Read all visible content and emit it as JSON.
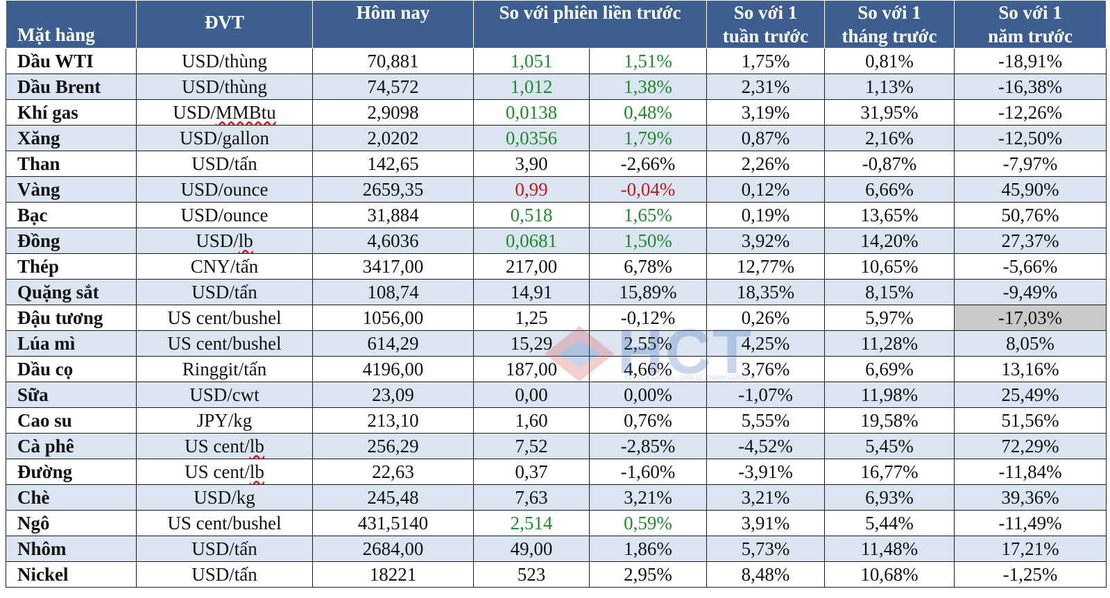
{
  "header": {
    "item": "Mặt hàng",
    "unit": "ĐVT",
    "today": "Hôm nay",
    "prev_session": "So với phiên liền trước",
    "week_l1": "So với 1",
    "week_l2": "tuần trước",
    "month_l1": "So với 1",
    "month_l2": "tháng trước",
    "year_l1": "So với 1",
    "year_l2": "năm trước"
  },
  "colors": {
    "header_bg": "#3d5f8f",
    "shade": "#dbe5f1",
    "positive": "#1e8a2a",
    "negative": "#c0161c",
    "highlight": "#c9c9c9"
  },
  "rows": [
    {
      "item": "Dầu WTI",
      "unit": "USD/thùng",
      "today": "70,881",
      "chg": "1,051",
      "pct": "1,51%",
      "w": "1,75%",
      "m": "0,81%",
      "y": "-18,91%"
    },
    {
      "item": "Dầu Brent",
      "unit": "USD/thùng",
      "today": "74,572",
      "chg": "1,012",
      "pct": "1,38%",
      "w": "2,31%",
      "m": "1,13%",
      "y": "-16,38%"
    },
    {
      "item": "Khí gas",
      "unit": "USD/MMBtu",
      "today": "2,9098",
      "chg": "0,0138",
      "pct": "0,48%",
      "w": "3,19%",
      "m": "31,95%",
      "y": "-12,26%"
    },
    {
      "item": "Xăng",
      "unit": "USD/gallon",
      "today": "2,0202",
      "chg": "0,0356",
      "pct": "1,79%",
      "w": "0,87%",
      "m": "2,16%",
      "y": "-12,50%"
    },
    {
      "item": "Than",
      "unit": "USD/tấn",
      "today": "142,65",
      "chg": "3,90",
      "pct": "-2,66%",
      "w": "2,26%",
      "m": "-0,87%",
      "y": "-7,97%"
    },
    {
      "item": "Vàng",
      "unit": "USD/ounce",
      "today": "2659,35",
      "chg": "0,99",
      "pct": "-0,04%",
      "w": "0,12%",
      "m": "6,66%",
      "y": "45,90%"
    },
    {
      "item": "Bạc",
      "unit": "USD/ounce",
      "today": "31,884",
      "chg": "0,518",
      "pct": "1,65%",
      "w": "0,19%",
      "m": "13,65%",
      "y": "50,76%"
    },
    {
      "item": "Đồng",
      "unit": "USD/lb",
      "today": "4,6036",
      "chg": "0,0681",
      "pct": "1,50%",
      "w": "3,92%",
      "m": "14,20%",
      "y": "27,37%"
    },
    {
      "item": "Thép",
      "unit": "CNY/tấn",
      "today": "3417,00",
      "chg": "217,00",
      "pct": "6,78%",
      "w": "12,77%",
      "m": "10,65%",
      "y": "-5,66%"
    },
    {
      "item": "Quặng sắt",
      "unit": "USD/tấn",
      "today": "108,74",
      "chg": "14,91",
      "pct": "15,89%",
      "w": "18,35%",
      "m": "8,15%",
      "y": "-9,49%"
    },
    {
      "item": "Đậu tương",
      "unit": "US cent/bushel",
      "today": "1056,00",
      "chg": "1,25",
      "pct": "-0,12%",
      "w": "0,26%",
      "m": "5,97%",
      "y": "-17,03%"
    },
    {
      "item": "Lúa mì",
      "unit": "US cent/bushel",
      "today": "614,29",
      "chg": "15,29",
      "pct": "2,55%",
      "w": "4,25%",
      "m": "11,28%",
      "y": "8,05%"
    },
    {
      "item": "Dầu cọ",
      "unit": "Ringgit/tấn",
      "today": "4196,00",
      "chg": "187,00",
      "pct": "4,66%",
      "w": "3,76%",
      "m": "6,69%",
      "y": "13,16%"
    },
    {
      "item": "Sữa",
      "unit": "USD/cwt",
      "today": "23,09",
      "chg": "0,00",
      "pct": "0,00%",
      "w": "-1,07%",
      "m": "11,98%",
      "y": "25,49%"
    },
    {
      "item": "Cao su",
      "unit": "JPY/kg",
      "today": "213,10",
      "chg": "1,60",
      "pct": "0,76%",
      "w": "5,55%",
      "m": "19,58%",
      "y": "51,56%"
    },
    {
      "item": "Cà phê",
      "unit": "US cent/lb",
      "today": "256,29",
      "chg": "7,52",
      "pct": "-2,85%",
      "w": "-4,52%",
      "m": "5,45%",
      "y": "72,29%"
    },
    {
      "item": "Đường",
      "unit": "US cent/lb",
      "today": "22,63",
      "chg": "0,37",
      "pct": "-1,60%",
      "w": "-3,91%",
      "m": "16,77%",
      "y": "-11,84%"
    },
    {
      "item": "Chè",
      "unit": "USD/kg",
      "today": "245,48",
      "chg": "7,63",
      "pct": "3,21%",
      "w": "3,21%",
      "m": "6,93%",
      "y": "39,36%"
    },
    {
      "item": "Ngô",
      "unit": "US cent/bushel",
      "today": "431,5140",
      "chg": "2,514",
      "pct": "0,59%",
      "w": "3,91%",
      "m": "5,44%",
      "y": "-11,49%"
    },
    {
      "item": "Nhôm",
      "unit": "USD/tấn",
      "today": "2684,00",
      "chg": "49,00",
      "pct": "1,86%",
      "w": "5,73%",
      "m": "11,48%",
      "y": "17,21%"
    },
    {
      "item": "Nickel",
      "unit": "USD/tấn",
      "today": "18221",
      "chg": "523",
      "pct": "2,95%",
      "w": "8,48%",
      "m": "10,68%",
      "y": "-1,25%"
    }
  ],
  "watermark": {
    "logo": "HCT",
    "tagline": "KẾT NỐI GIÁ TRỊ - CHIA SẺ THÀNH CÔNG"
  }
}
